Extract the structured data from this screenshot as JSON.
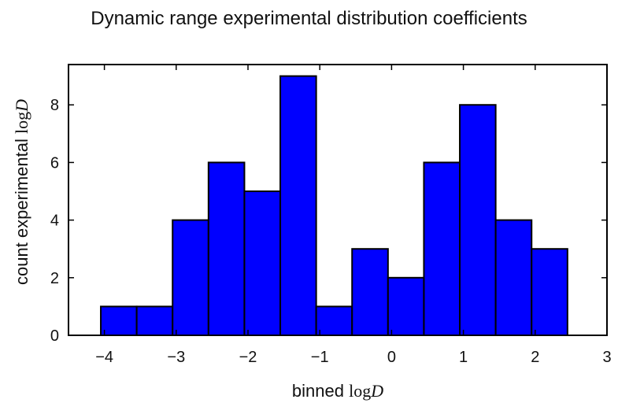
{
  "chart_data": {
    "type": "bar",
    "title": "Dynamic range experimental distribution coefficients",
    "xlabel": {
      "prefix": "binned ",
      "log": "log",
      "var": "D"
    },
    "ylabel": {
      "prefix": "count experimental ",
      "log": "log",
      "var": "D"
    },
    "xlim": [
      -4.5,
      3
    ],
    "ylim": [
      0,
      9.4
    ],
    "xticks": [
      -4,
      -3,
      -2,
      -1,
      0,
      1,
      2,
      3
    ],
    "xtick_labels": [
      "−4",
      "−3",
      "−2",
      "−1",
      "0",
      "1",
      "2",
      "3"
    ],
    "yticks": [
      0,
      2,
      4,
      6,
      8
    ],
    "ytick_labels": [
      "0",
      "2",
      "4",
      "6",
      "8"
    ],
    "bin_edges": [
      -4.05,
      -3.55,
      -3.05,
      -2.55,
      -2.05,
      -1.55,
      -1.05,
      -0.55,
      -0.05,
      0.45,
      0.95,
      1.45,
      1.95,
      2.45
    ],
    "values": [
      1,
      1,
      4,
      6,
      5,
      9,
      1,
      3,
      2,
      6,
      8,
      4,
      3
    ],
    "bar_color": "#0000ff",
    "edge_color": "#000000",
    "grid": false
  }
}
